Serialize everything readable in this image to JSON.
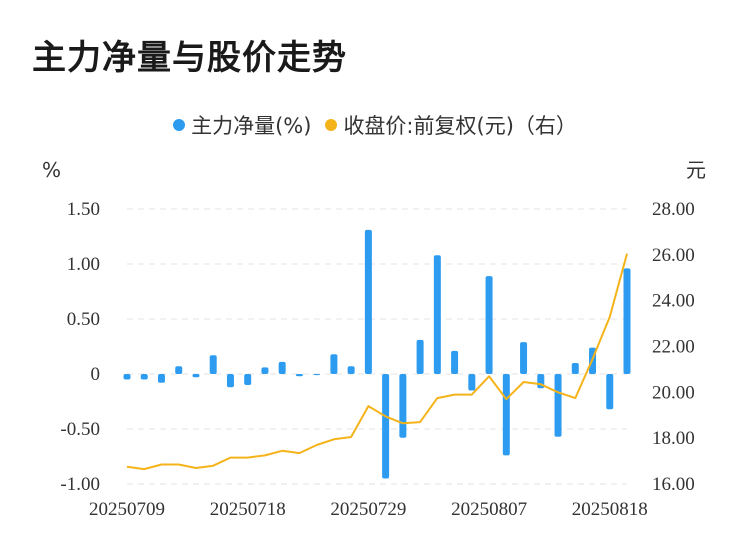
{
  "title": "主力净量与股价走势",
  "legend": [
    {
      "label": "主力净量(%)",
      "color": "#2d9cf0"
    },
    {
      "label": "收盘价:前复权(元)（右）",
      "color": "#f5b31a"
    }
  ],
  "chart_data": {
    "type": "bar+line",
    "left_unit": "%",
    "right_unit": "元",
    "left_ticks": [
      "1.50",
      "1.00",
      "0.50",
      "0",
      "-0.50",
      "-1.00"
    ],
    "right_ticks": [
      "28.00",
      "26.00",
      "24.00",
      "22.00",
      "20.00",
      "18.00",
      "16.00"
    ],
    "ylim_left": [
      -1.0,
      1.5
    ],
    "ylim_right": [
      16.0,
      28.0
    ],
    "x_tick_labels": [
      "20250709",
      "20250718",
      "20250729",
      "20250807",
      "20250818"
    ],
    "x_tick_indices": [
      0,
      7,
      14,
      21,
      28
    ],
    "dates": [
      "20250709",
      "20250710",
      "20250711",
      "20250714",
      "20250715",
      "20250716",
      "20250717",
      "20250718",
      "20250721",
      "20250722",
      "20250723",
      "20250724",
      "20250725",
      "20250728",
      "20250729",
      "20250730",
      "20250731",
      "20250801",
      "20250804",
      "20250805",
      "20250806",
      "20250807",
      "20250808",
      "20250811",
      "20250812",
      "20250813",
      "20250814",
      "20250815",
      "20250818",
      "20250819"
    ],
    "series": [
      {
        "name": "主力净量(%)",
        "type": "bar",
        "axis": "left",
        "color": "#2d9cf0",
        "values": [
          -0.05,
          -0.05,
          -0.08,
          0.07,
          -0.03,
          0.17,
          -0.12,
          -0.1,
          0.06,
          0.11,
          -0.02,
          -0.01,
          0.18,
          0.07,
          1.31,
          -0.95,
          -0.58,
          0.31,
          1.08,
          0.21,
          -0.15,
          0.89,
          -0.74,
          0.29,
          -0.13,
          -0.57,
          0.1,
          0.24,
          -0.32,
          0.96
        ]
      },
      {
        "name": "收盘价:前复权(元)（右）",
        "type": "line",
        "axis": "right",
        "color": "#f5b31a",
        "values": [
          16.75,
          16.65,
          16.85,
          16.85,
          16.7,
          16.8,
          17.15,
          17.15,
          17.25,
          17.45,
          17.35,
          17.7,
          17.95,
          18.05,
          19.4,
          18.95,
          18.65,
          18.7,
          19.75,
          19.9,
          19.9,
          20.7,
          19.7,
          20.45,
          20.35,
          20.0,
          19.75,
          21.45,
          23.3,
          26.05
        ]
      }
    ]
  }
}
